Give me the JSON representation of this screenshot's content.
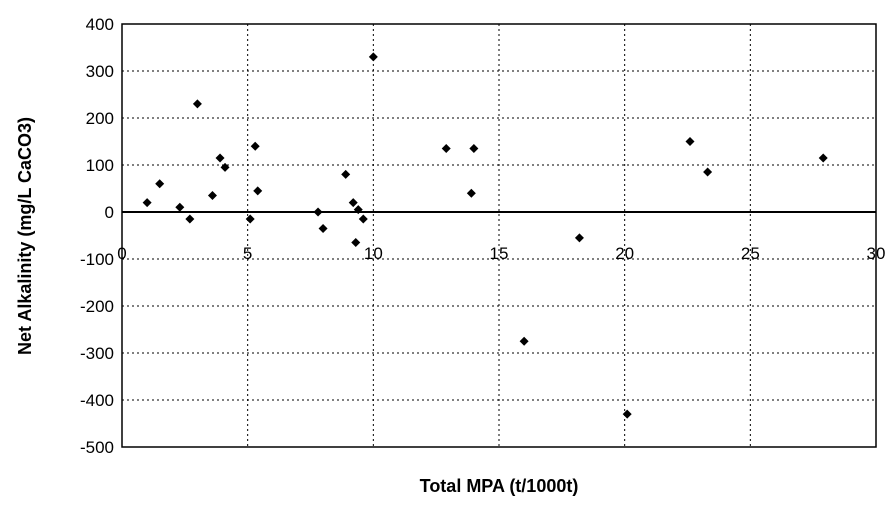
{
  "chart_data": {
    "type": "scatter",
    "title": "",
    "xlabel": "Total MPA (t/1000t)",
    "ylabel": "Net Alkalinity (mg/L CaCO3)",
    "xlim": [
      0,
      30
    ],
    "ylim": [
      -500,
      400
    ],
    "xticks": [
      0,
      5,
      10,
      15,
      20,
      25,
      30
    ],
    "yticks": [
      400,
      300,
      200,
      100,
      0,
      -100,
      -200,
      -300,
      -400,
      -500
    ],
    "grid": true,
    "legend": "none",
    "marker_color": "#000000",
    "series": [
      {
        "x": [
          1.0,
          1.5,
          2.3,
          2.7,
          3.0,
          3.6,
          3.9,
          4.1,
          5.1,
          5.3,
          5.4,
          7.8,
          8.0,
          8.9,
          9.2,
          9.3,
          9.4,
          9.6,
          10.0,
          12.9,
          13.9,
          14.0,
          16.0,
          18.2,
          20.1,
          22.6,
          23.3,
          27.9
        ],
        "y": [
          20,
          60,
          10,
          -15,
          230,
          35,
          115,
          95,
          -15,
          140,
          45,
          0,
          -35,
          80,
          20,
          -65,
          5,
          -15,
          330,
          135,
          40,
          135,
          -275,
          -55,
          -430,
          150,
          85,
          115
        ]
      }
    ]
  }
}
